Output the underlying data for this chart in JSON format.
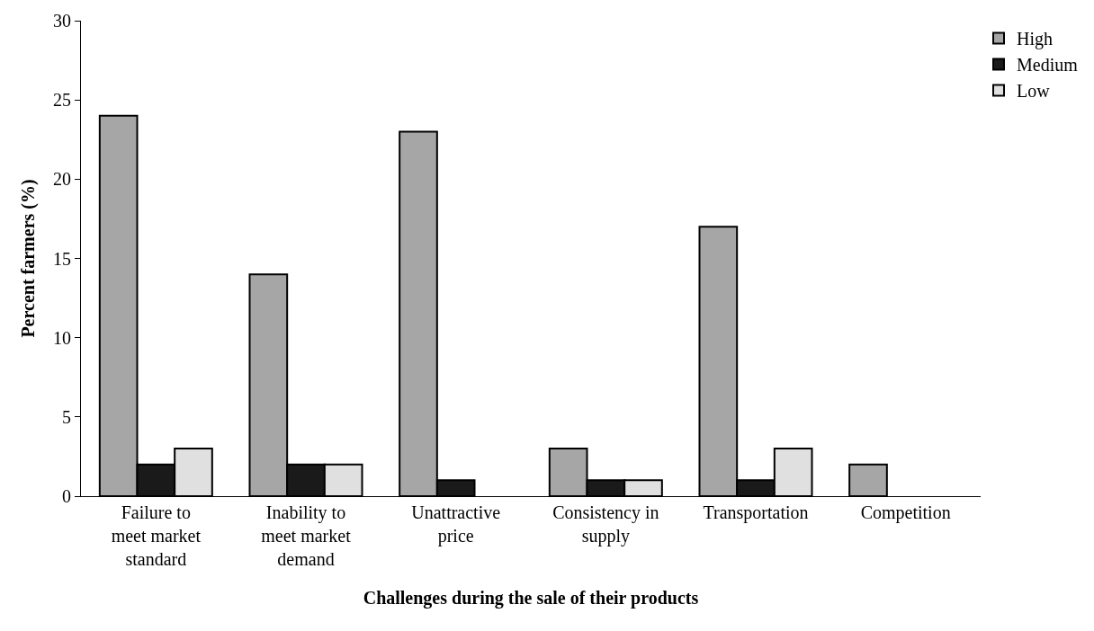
{
  "chart_data": {
    "type": "bar",
    "xlabel": "Challenges during the sale of their products",
    "ylabel": "Percent farmers (%)",
    "categories": [
      "Failure to meet market standard",
      "Inability to meet market demand",
      "Unattractive price",
      "Consistency in supply",
      "Transportation",
      "Competition"
    ],
    "series": [
      {
        "name": "High",
        "color": "#a6a6a6",
        "values": [
          24,
          14,
          23,
          3,
          17,
          2
        ]
      },
      {
        "name": "Medium",
        "color": "#1a1a1a",
        "values": [
          2,
          2,
          1,
          1,
          1,
          null
        ]
      },
      {
        "name": "Low",
        "color": "#e0e0e0",
        "values": [
          3,
          2,
          null,
          1,
          3,
          null
        ]
      }
    ],
    "ylim": [
      0,
      30
    ],
    "yticks": [
      0,
      5,
      10,
      15,
      20,
      25,
      30
    ],
    "grid": false,
    "legend": "top right"
  }
}
